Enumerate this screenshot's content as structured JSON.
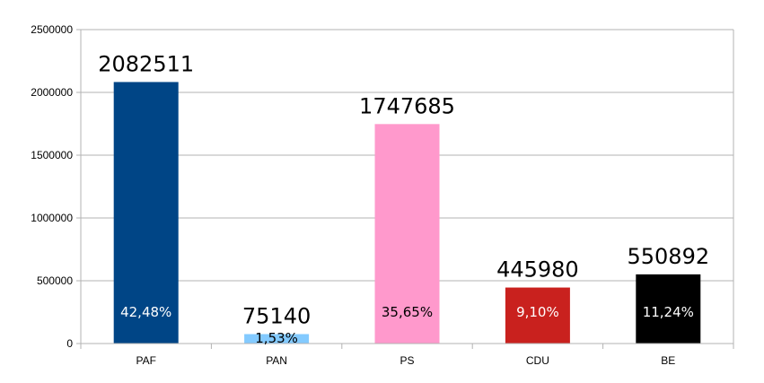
{
  "chart_data": {
    "type": "bar",
    "categories": [
      "PAF",
      "PAN",
      "PS",
      "CDU",
      "BE"
    ],
    "values": [
      2082511,
      75140,
      1747685,
      445980,
      550892
    ],
    "percent_labels": [
      "42,48%",
      "1,53%",
      "35,65%",
      "9,10%",
      "11,24%"
    ],
    "value_labels": [
      "2082511",
      "75140",
      "1747685",
      "445980",
      "550892"
    ],
    "colors": [
      "#004586",
      "#83caff",
      "#ff99cc",
      "#c9211e",
      "#000000"
    ],
    "percent_label_colors": [
      "#ffffff",
      "#000000",
      "#000000",
      "#ffffff",
      "#ffffff"
    ],
    "ylim": [
      0,
      2500000
    ],
    "yticks": [
      0,
      500000,
      1000000,
      1500000,
      2000000,
      2500000
    ],
    "ytick_labels": [
      "0",
      "500000",
      "1000000",
      "1500000",
      "2000000",
      "2500000"
    ],
    "title": "",
    "xlabel": "",
    "ylabel": "",
    "grid": true,
    "legend": "none"
  }
}
